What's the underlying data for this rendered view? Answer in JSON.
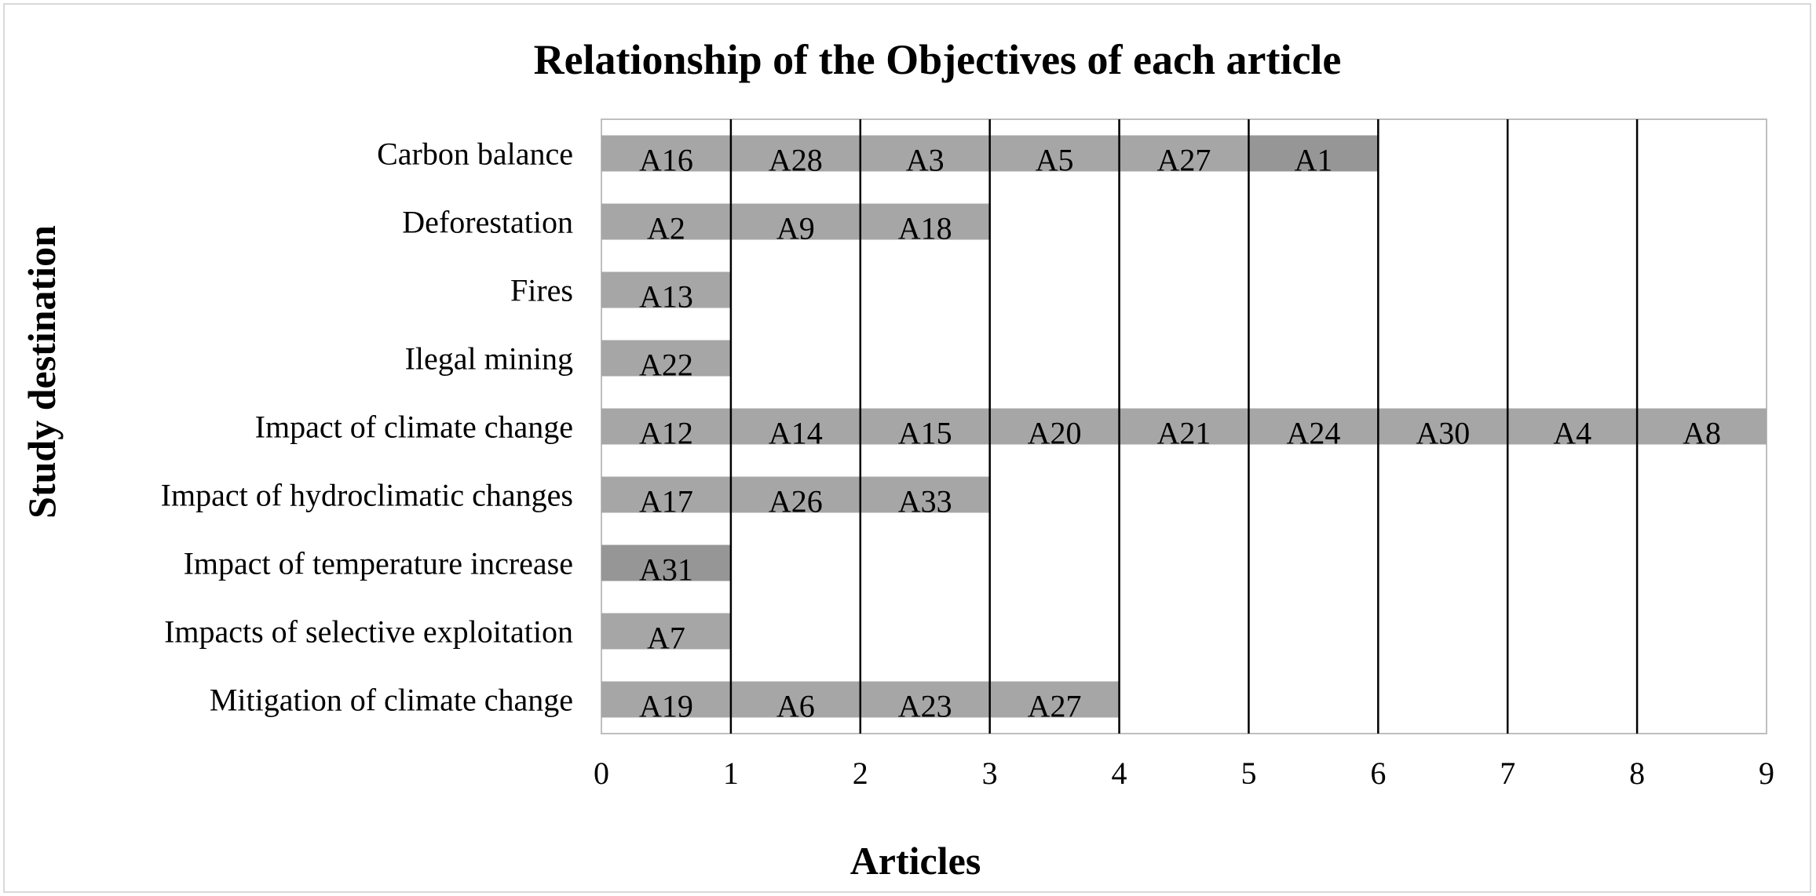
{
  "chart_data": {
    "type": "bar",
    "orientation": "horizontal",
    "stacked": true,
    "title": "Relationship of the Objectives of each article",
    "xlabel": "Articles",
    "ylabel": "Study destination",
    "xlim": [
      0,
      9
    ],
    "xticks": [
      0,
      1,
      2,
      3,
      4,
      5,
      6,
      7,
      8,
      9
    ],
    "grid": "vertical",
    "legend": "none",
    "colors": {
      "segment": "#a6a6a6",
      "segment_dark": "#969696",
      "grid": "#000000",
      "border": "#bfbfbf"
    },
    "categories": [
      "Carbon balance",
      "Deforestation",
      "Fires",
      "Ilegal mining",
      "Impact of climate change",
      "Impact of hydroclimatic changes",
      "Impact of temperature increase",
      "Impacts of selective exploitation",
      "Mitigation of climate change"
    ],
    "values": [
      6,
      3,
      1,
      1,
      9,
      3,
      1,
      1,
      4
    ],
    "segments": [
      [
        "A16",
        "A28",
        "A3",
        "A5",
        "A27",
        "A1"
      ],
      [
        "A2",
        "A9",
        "A18"
      ],
      [
        "A13"
      ],
      [
        "A22"
      ],
      [
        "A12",
        "A14",
        "A15",
        "A20",
        "A21",
        "A24",
        "A30",
        "A4",
        "A8"
      ],
      [
        "A17",
        "A26",
        "A33"
      ],
      [
        "A31"
      ],
      [
        "A7"
      ],
      [
        "A19",
        "A6",
        "A23",
        "A27"
      ]
    ]
  }
}
